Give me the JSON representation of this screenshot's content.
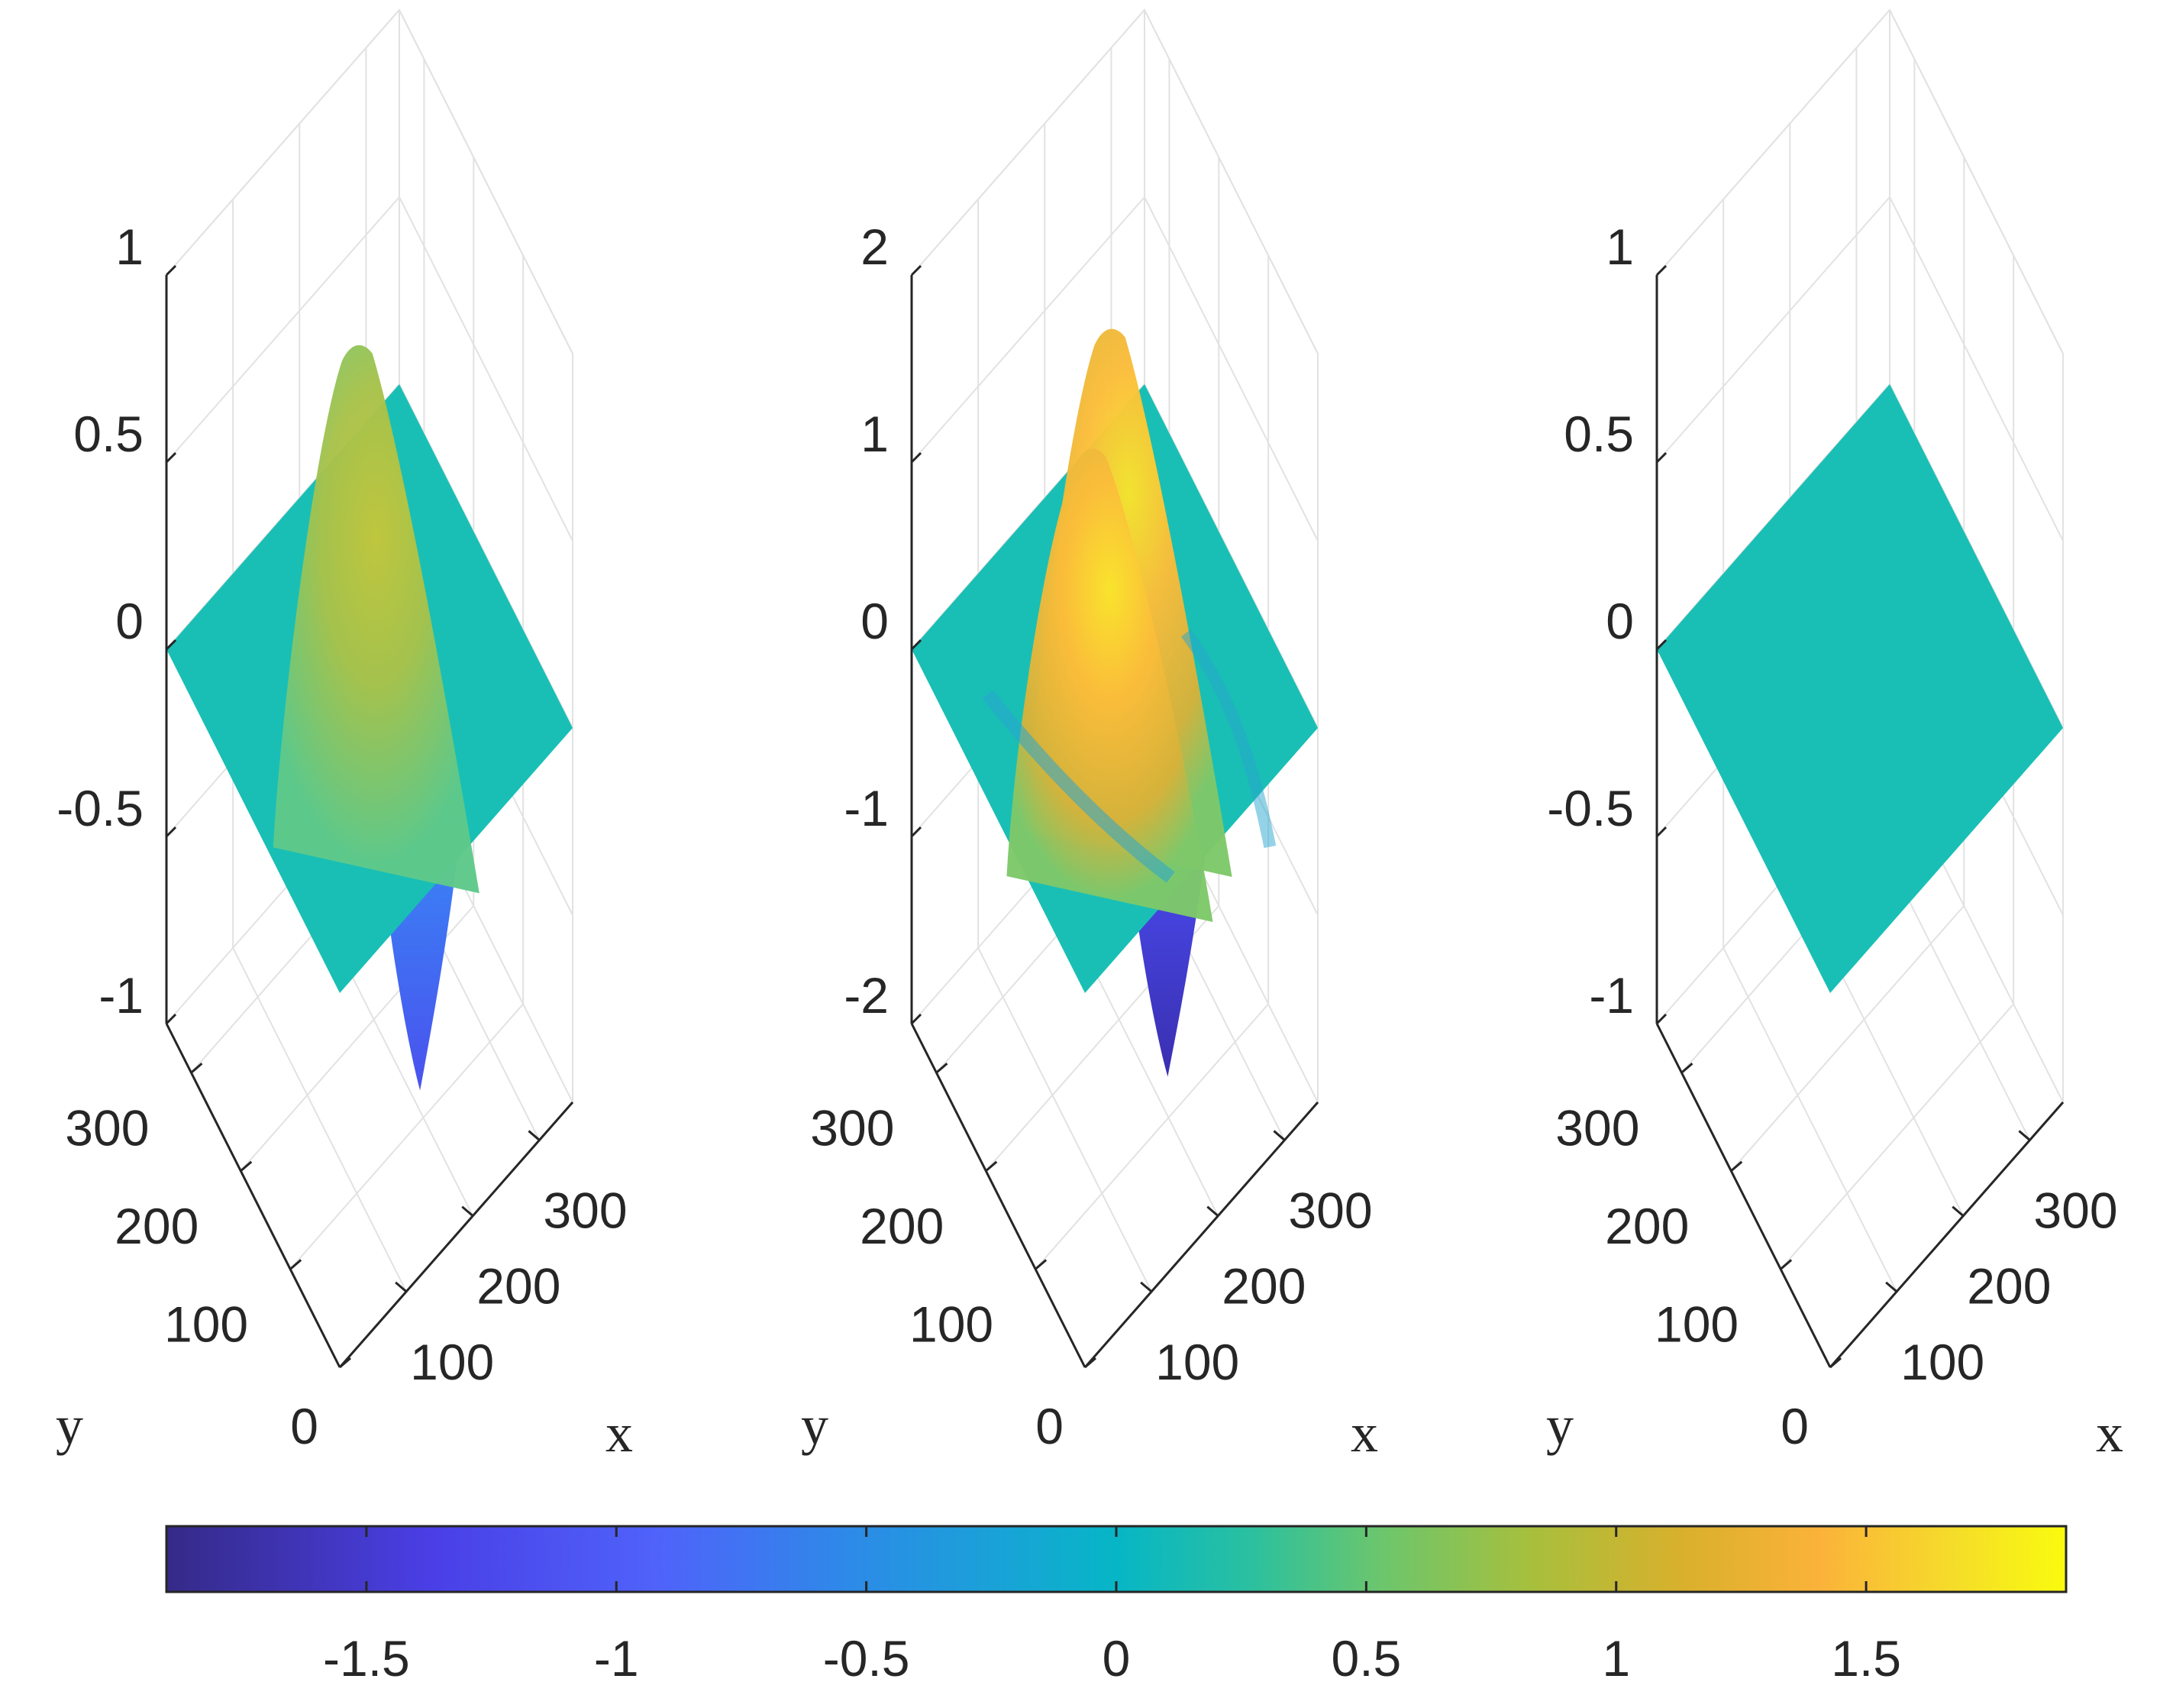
{
  "chart_data": {
    "colormap": "parula",
    "colorbar": {
      "range": [
        -1.9,
        1.9
      ],
      "ticks": [
        -1.5,
        -1,
        -0.5,
        0,
        0.5,
        1,
        1.5
      ],
      "tick_labels": [
        "-1.5",
        "-1",
        "-0.5",
        "0",
        "0.5",
        "1",
        "1.5"
      ],
      "location": "bottom"
    },
    "panels": [
      {
        "type": "surface",
        "title": "",
        "xlabel": "x",
        "ylabel": "y",
        "xlim": [
          0,
          350
        ],
        "ylim": [
          0,
          350
        ],
        "zlim": [
          -1,
          1
        ],
        "x_tick_labels": [
          "100",
          "200",
          "300"
        ],
        "y_tick_labels": [
          "0",
          "100",
          "200",
          "300"
        ],
        "z_tick_labels": [
          "-1",
          "-0.5",
          "0",
          "0.5",
          "1"
        ],
        "features": [
          {
            "kind": "peak",
            "x": 175,
            "y": 200,
            "value": 0.85
          },
          {
            "kind": "trough",
            "x": 210,
            "y": 120,
            "value": -1.0
          }
        ]
      },
      {
        "type": "surface",
        "title": "",
        "xlabel": "x",
        "ylabel": "y",
        "xlim": [
          0,
          350
        ],
        "ylim": [
          0,
          350
        ],
        "zlim": [
          -2,
          2
        ],
        "x_tick_labels": [
          "100",
          "200",
          "300"
        ],
        "y_tick_labels": [
          "0",
          "100",
          "200",
          "300"
        ],
        "z_tick_labels": [
          "-2",
          "-1",
          "0",
          "1",
          "2"
        ],
        "features": [
          {
            "kind": "peak",
            "x": 190,
            "y": 205,
            "value": 1.7
          },
          {
            "kind": "peak",
            "x": 150,
            "y": 190,
            "value": 1.3
          },
          {
            "kind": "trough",
            "x": 210,
            "y": 115,
            "value": -1.9
          }
        ]
      },
      {
        "type": "surface",
        "title": "",
        "xlabel": "x",
        "ylabel": "y",
        "xlim": [
          0,
          350
        ],
        "ylim": [
          0,
          350
        ],
        "zlim": [
          -1,
          1
        ],
        "x_tick_labels": [
          "100",
          "200",
          "300"
        ],
        "y_tick_labels": [
          "0",
          "100",
          "200",
          "300"
        ],
        "z_tick_labels": [
          "-1",
          "-0.5",
          "0",
          "0.5",
          "1"
        ],
        "features": []
      }
    ]
  }
}
